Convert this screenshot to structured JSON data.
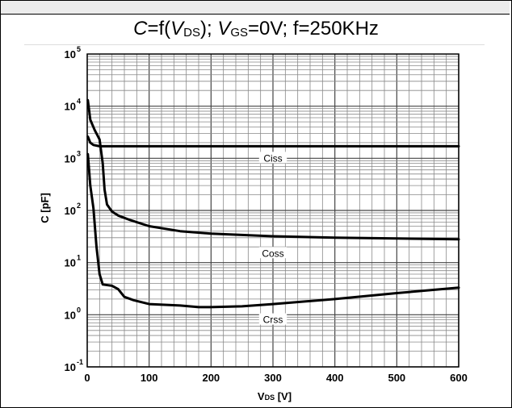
{
  "title": {
    "C": "C",
    "eq": "=f(",
    "V1": "V",
    "V1sub": "DS",
    "mid": "); ",
    "V2": "V",
    "V2sub": "GS",
    "rest": "=0V; f=250KHz"
  },
  "chart_data": {
    "type": "line",
    "xlabel": {
      "main": "V",
      "sub": "DS",
      "unit": " [V]"
    },
    "ylabel": "C [pF]",
    "xlim": [
      0,
      600
    ],
    "ylim": [
      0.1,
      100000
    ],
    "yscale": "log",
    "grid": true,
    "x_ticks": [
      0,
      100,
      200,
      300,
      400,
      500,
      600
    ],
    "y_ticks": [
      {
        "base": "10",
        "exp": "-1",
        "value": 0.1
      },
      {
        "base": "10",
        "exp": "0",
        "value": 1
      },
      {
        "base": "10",
        "exp": "1",
        "value": 10
      },
      {
        "base": "10",
        "exp": "2",
        "value": 100
      },
      {
        "base": "10",
        "exp": "3",
        "value": 1000
      },
      {
        "base": "10",
        "exp": "4",
        "value": 10000
      },
      {
        "base": "10",
        "exp": "5",
        "value": 100000
      }
    ],
    "series": [
      {
        "name": "Ciss",
        "label_at": [
          300,
          1000
        ],
        "points": [
          [
            1,
            2600
          ],
          [
            5,
            2000
          ],
          [
            10,
            1800
          ],
          [
            20,
            1700
          ],
          [
            50,
            1700
          ],
          [
            100,
            1700
          ],
          [
            200,
            1700
          ],
          [
            300,
            1700
          ],
          [
            400,
            1700
          ],
          [
            500,
            1700
          ],
          [
            600,
            1700
          ]
        ]
      },
      {
        "name": "Coss",
        "label_at": [
          300,
          15
        ],
        "points": [
          [
            1,
            13000
          ],
          [
            5,
            5500
          ],
          [
            12,
            3500
          ],
          [
            20,
            2300
          ],
          [
            25,
            800
          ],
          [
            28,
            250
          ],
          [
            32,
            130
          ],
          [
            40,
            95
          ],
          [
            50,
            80
          ],
          [
            70,
            65
          ],
          [
            100,
            50
          ],
          [
            150,
            40
          ],
          [
            200,
            36
          ],
          [
            300,
            32
          ],
          [
            400,
            30
          ],
          [
            500,
            29
          ],
          [
            600,
            28
          ]
        ]
      },
      {
        "name": "Crss",
        "label_at": [
          300,
          0.8
        ],
        "points": [
          [
            1,
            1200
          ],
          [
            5,
            300
          ],
          [
            10,
            110
          ],
          [
            15,
            20
          ],
          [
            20,
            6
          ],
          [
            25,
            3.8
          ],
          [
            40,
            3.6
          ],
          [
            50,
            3.1
          ],
          [
            60,
            2.2
          ],
          [
            75,
            1.9
          ],
          [
            100,
            1.6
          ],
          [
            150,
            1.5
          ],
          [
            180,
            1.4
          ],
          [
            200,
            1.4
          ],
          [
            250,
            1.45
          ],
          [
            300,
            1.6
          ],
          [
            400,
            2.0
          ],
          [
            500,
            2.6
          ],
          [
            600,
            3.3
          ]
        ]
      }
    ]
  }
}
